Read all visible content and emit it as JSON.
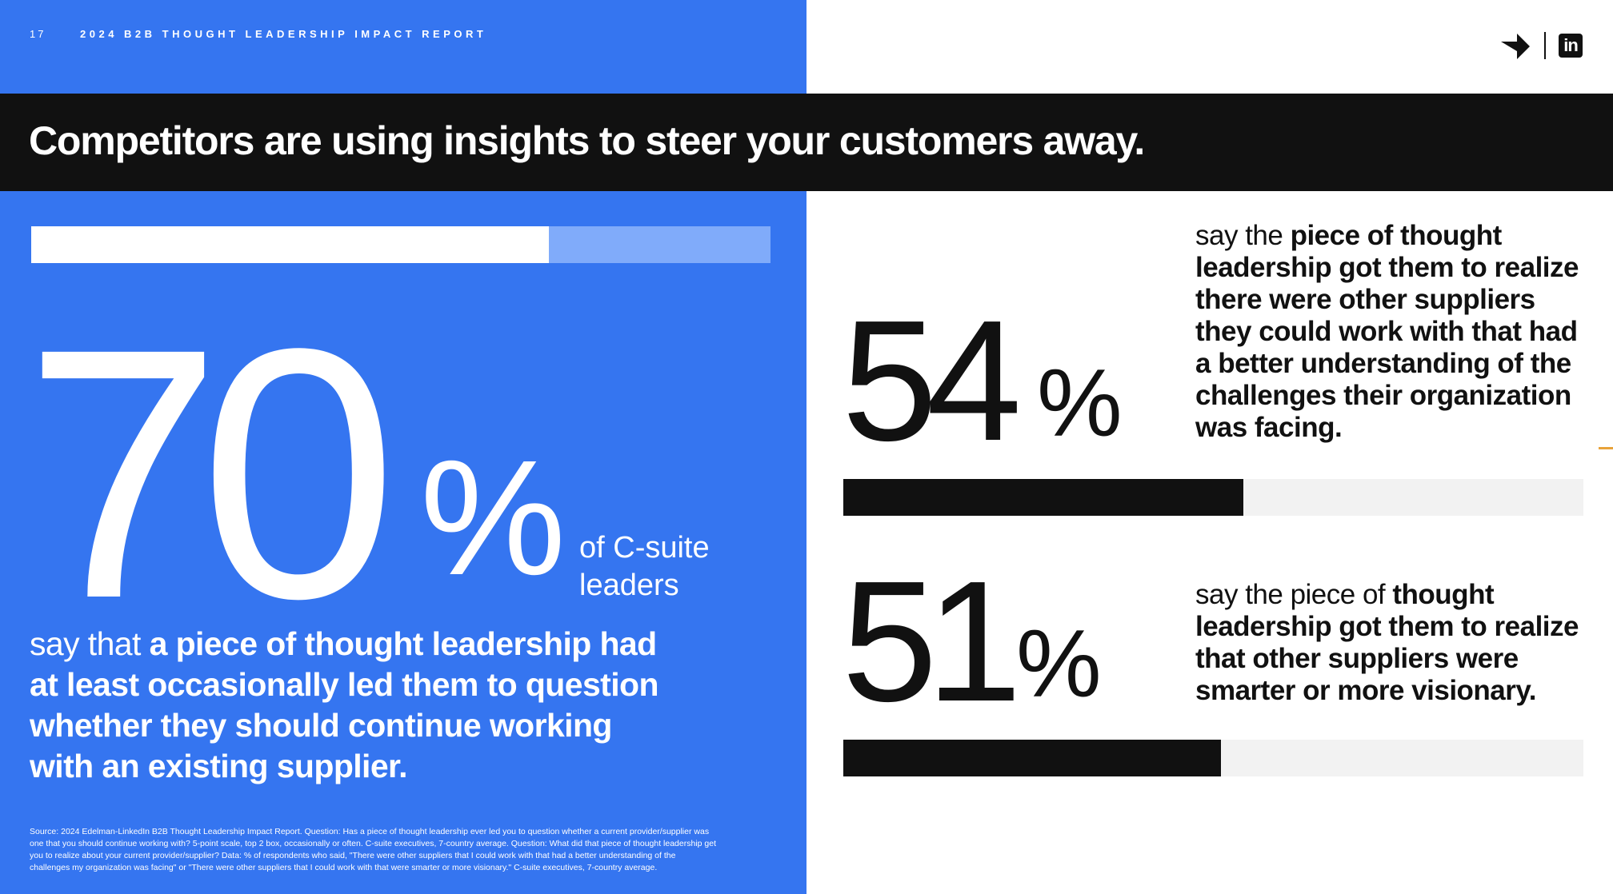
{
  "header": {
    "page_number": "17",
    "report_title": "2024 B2B THOUGHT LEADERSHIP IMPACT REPORT",
    "logo_linkedin": "in"
  },
  "headline": "Competitors are using insights to steer your customers away.",
  "stat_main": {
    "value": "70",
    "percent_sign": "%",
    "fill_percent": 70,
    "audience": "of C-suite leaders",
    "desc_lead": "say that ",
    "desc_bold": "a piece of thought leadership had at least occasionally led them to question whether they should continue working with an existing supplier."
  },
  "stat_a": {
    "value": "54",
    "percent_sign": "%",
    "fill_percent": 54,
    "desc_lead": "say the ",
    "desc_bold": "piece of thought leadership got them to realize there were other suppliers they could work with that had a better understanding of the challenges their organization was facing."
  },
  "stat_b": {
    "value": "51",
    "percent_sign": "%",
    "fill_percent": 51,
    "desc_lead": "say the piece of ",
    "desc_bold": "thought leadership got them to realize that other suppliers were smarter or more visionary."
  },
  "source_note": "Source: 2024 Edelman-LinkedIn B2B Thought Leadership Impact Report. Question: Has a piece of thought leadership ever led you to question whether a current provider/supplier was one that you should continue working with? 5-point scale, top 2 box, occasionally or often. C-suite executives, 7-country average. Question: What did that piece of thought leadership get you to realize about your current provider/supplier? Data: % of respondents who said, \"There were other suppliers that I could work with that had a better understanding of the challenges my organization was facing\" or \"There were other suppliers that I could work with that were smarter or more visionary.\" C-suite executives, 7-country average.",
  "colors": {
    "brand_blue": "#3575f0",
    "light_blue": "#80abfa",
    "dark": "#111111",
    "light_gray": "#f2f2f2"
  },
  "icons": [
    "arrow-logo-icon",
    "linkedin-icon"
  ]
}
